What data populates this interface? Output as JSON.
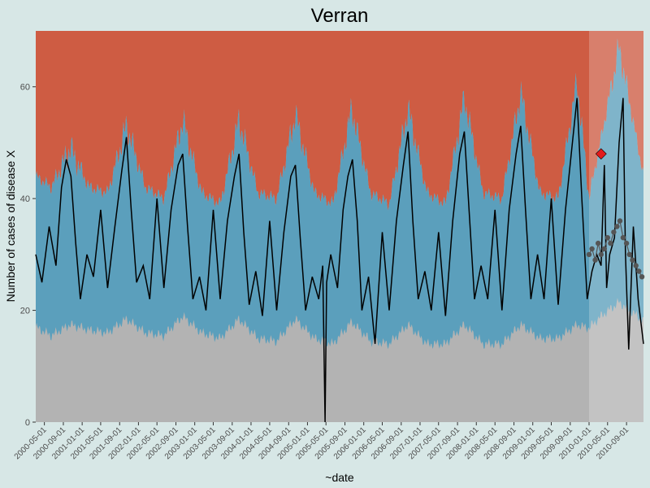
{
  "chart_data": {
    "type": "line",
    "title": "Verran",
    "xlabel": "~date",
    "ylabel": "Number of cases of disease X",
    "ylim": [
      0,
      70
    ],
    "yticks": [
      0,
      20,
      40,
      60
    ],
    "xlim": [
      "2000-03-06",
      "2010-12-20"
    ],
    "xticks": [
      "2000-05-01",
      "2000-09-01",
      "2001-01-01",
      "2001-05-01",
      "2001-09-01",
      "2002-01-01",
      "2002-05-01",
      "2002-09-01",
      "2003-01-01",
      "2003-05-01",
      "2003-09-01",
      "2004-01-01",
      "2004-05-01",
      "2004-09-01",
      "2005-01-01",
      "2005-05-01",
      "2005-09-01",
      "2006-01-01",
      "2006-05-01",
      "2006-09-01",
      "2007-01-01",
      "2007-05-01",
      "2007-09-01",
      "2008-01-01",
      "2008-05-01",
      "2008-09-01",
      "2009-01-01",
      "2009-05-01",
      "2009-09-01",
      "2010-01-01",
      "2010-05-01",
      "2010-09-01"
    ],
    "grid": false,
    "prediction_start": "2010-01-01",
    "colors": {
      "background": "#d7e7e6",
      "lower_band": "#b3b3b3",
      "normal_band": "#5b9fbc",
      "upper_band": "#ce5c43",
      "normal_band_pred": "#8ecfea",
      "upper_band_pred": "#f68a6e",
      "observed": "#000000",
      "predicted": "#555555",
      "alarm": "#e31a1c"
    },
    "peak_dates": [
      "2000-10-15",
      "2001-10-15",
      "2002-10-15",
      "2003-10-15",
      "2004-10-15",
      "2005-10-15",
      "2006-10-15",
      "2007-10-15",
      "2008-10-15",
      "2009-10-15",
      "2010-07-15"
    ],
    "series": [
      {
        "name": "lower_threshold",
        "x": [
          "2000-03-06",
          "2000-06-15",
          "2000-10-15",
          "2001-02-15",
          "2001-06-15",
          "2001-10-15",
          "2002-02-15",
          "2002-06-15",
          "2002-10-15",
          "2003-02-15",
          "2003-06-15",
          "2003-10-15",
          "2004-02-15",
          "2004-06-15",
          "2004-10-15",
          "2005-02-15",
          "2005-06-15",
          "2005-10-15",
          "2006-02-15",
          "2006-06-15",
          "2006-10-15",
          "2007-02-15",
          "2007-06-15",
          "2007-10-15",
          "2008-02-15",
          "2008-06-15",
          "2008-10-15",
          "2009-02-15",
          "2009-06-15",
          "2009-10-15",
          "2010-01-01",
          "2010-07-15",
          "2010-12-20"
        ],
        "y": [
          17,
          15.5,
          18,
          16.5,
          16,
          19,
          16,
          15.5,
          19.5,
          16,
          15,
          19,
          15,
          14.5,
          19,
          15,
          14,
          18.5,
          14.5,
          14,
          18,
          14,
          14,
          18,
          14,
          14,
          18,
          15,
          15,
          18,
          17,
          22,
          18
        ]
      },
      {
        "name": "upper_threshold",
        "x": [
          "2000-03-06",
          "2000-06-15",
          "2000-10-15",
          "2001-02-15",
          "2001-06-15",
          "2001-10-15",
          "2002-02-15",
          "2002-06-15",
          "2002-10-15",
          "2003-02-15",
          "2003-06-15",
          "2003-10-15",
          "2004-02-15",
          "2004-06-15",
          "2004-10-15",
          "2005-02-15",
          "2005-06-15",
          "2005-10-15",
          "2006-02-15",
          "2006-06-15",
          "2006-10-15",
          "2007-02-15",
          "2007-06-15",
          "2007-10-15",
          "2008-02-15",
          "2008-06-15",
          "2008-10-15",
          "2009-02-15",
          "2009-06-15",
          "2009-10-15",
          "2010-01-01",
          "2010-07-15",
          "2010-12-20"
        ],
        "y": [
          44,
          42,
          49,
          42,
          41,
          53,
          42,
          40,
          54,
          41,
          39,
          54,
          41,
          40,
          55,
          41,
          39,
          56,
          41,
          39,
          56,
          41,
          39,
          58,
          41,
          40,
          59,
          41,
          40,
          61,
          40,
          67,
          44
        ]
      },
      {
        "name": "observed",
        "x": [
          "2000-03-06",
          "2000-04-15",
          "2000-06-01",
          "2000-07-15",
          "2000-08-20",
          "2000-09-20",
          "2000-10-20",
          "2000-11-20",
          "2000-12-20",
          "2001-02-01",
          "2001-03-15",
          "2001-05-01",
          "2001-06-15",
          "2001-08-01",
          "2001-09-15",
          "2001-10-15",
          "2001-11-15",
          "2001-12-20",
          "2002-02-01",
          "2002-03-15",
          "2002-05-01",
          "2002-06-15",
          "2002-08-01",
          "2002-09-15",
          "2002-10-15",
          "2002-11-15",
          "2002-12-20",
          "2003-02-01",
          "2003-03-15",
          "2003-05-01",
          "2003-06-15",
          "2003-08-01",
          "2003-09-15",
          "2003-10-15",
          "2003-11-15",
          "2003-12-20",
          "2004-02-01",
          "2004-03-15",
          "2004-05-01",
          "2004-06-15",
          "2004-08-01",
          "2004-09-15",
          "2004-10-15",
          "2004-11-15",
          "2004-12-20",
          "2005-02-01",
          "2005-03-15",
          "2005-04-10",
          "2005-04-25",
          "2005-05-05",
          "2005-06-01",
          "2005-07-15",
          "2005-08-20",
          "2005-09-20",
          "2005-10-20",
          "2005-11-20",
          "2005-12-20",
          "2006-02-01",
          "2006-03-15",
          "2006-05-01",
          "2006-06-15",
          "2006-08-01",
          "2006-09-15",
          "2006-10-15",
          "2006-11-15",
          "2006-12-20",
          "2007-02-01",
          "2007-03-15",
          "2007-05-01",
          "2007-06-15",
          "2007-08-01",
          "2007-09-15",
          "2007-10-15",
          "2007-11-15",
          "2007-12-20",
          "2008-02-01",
          "2008-03-15",
          "2008-05-01",
          "2008-06-15",
          "2008-08-01",
          "2008-09-15",
          "2008-10-15",
          "2008-11-15",
          "2008-12-20",
          "2009-02-01",
          "2009-03-15",
          "2009-05-01",
          "2009-06-15",
          "2009-08-01",
          "2009-09-15",
          "2009-10-15",
          "2009-11-15",
          "2009-12-20",
          "2010-01-20",
          "2010-02-20",
          "2010-03-20",
          "2010-04-10",
          "2010-04-25",
          "2010-05-15",
          "2010-06-15",
          "2010-07-15",
          "2010-08-10",
          "2010-08-25",
          "2010-09-15",
          "2010-10-15",
          "2010-11-15",
          "2010-12-20"
        ],
        "y": [
          30,
          25,
          35,
          28,
          42,
          47,
          44,
          32,
          22,
          30,
          26,
          38,
          24,
          35,
          45,
          51,
          38,
          25,
          28,
          22,
          40,
          24,
          38,
          46,
          48,
          35,
          22,
          26,
          20,
          38,
          22,
          36,
          44,
          48,
          34,
          21,
          27,
          19,
          36,
          20,
          34,
          44,
          46,
          33,
          20,
          26,
          22,
          28,
          0,
          25,
          30,
          24,
          38,
          44,
          47,
          36,
          20,
          26,
          14,
          34,
          20,
          36,
          46,
          52,
          36,
          22,
          27,
          20,
          34,
          19,
          36,
          48,
          52,
          38,
          22,
          28,
          22,
          38,
          20,
          38,
          48,
          53,
          38,
          22,
          30,
          22,
          40,
          21,
          38,
          50,
          58,
          40,
          22,
          27,
          30,
          28,
          46,
          24,
          30,
          33,
          50,
          58,
          30,
          13,
          35,
          22,
          14
        ]
      },
      {
        "name": "predicted",
        "x": [
          "2010-01-01",
          "2010-01-20",
          "2010-02-10",
          "2010-03-01",
          "2010-03-20",
          "2010-04-10",
          "2010-05-01",
          "2010-05-20",
          "2010-06-10",
          "2010-07-01",
          "2010-07-20",
          "2010-08-10",
          "2010-09-01",
          "2010-09-20",
          "2010-10-10",
          "2010-11-01",
          "2010-11-20",
          "2010-12-10"
        ],
        "y": [
          30,
          31,
          29,
          32,
          30,
          31,
          33,
          32,
          34,
          35,
          36,
          33,
          32,
          30,
          29,
          28,
          27,
          26
        ]
      },
      {
        "name": "alarm",
        "x": [
          "2010-03-20"
        ],
        "y": [
          48
        ]
      }
    ]
  }
}
